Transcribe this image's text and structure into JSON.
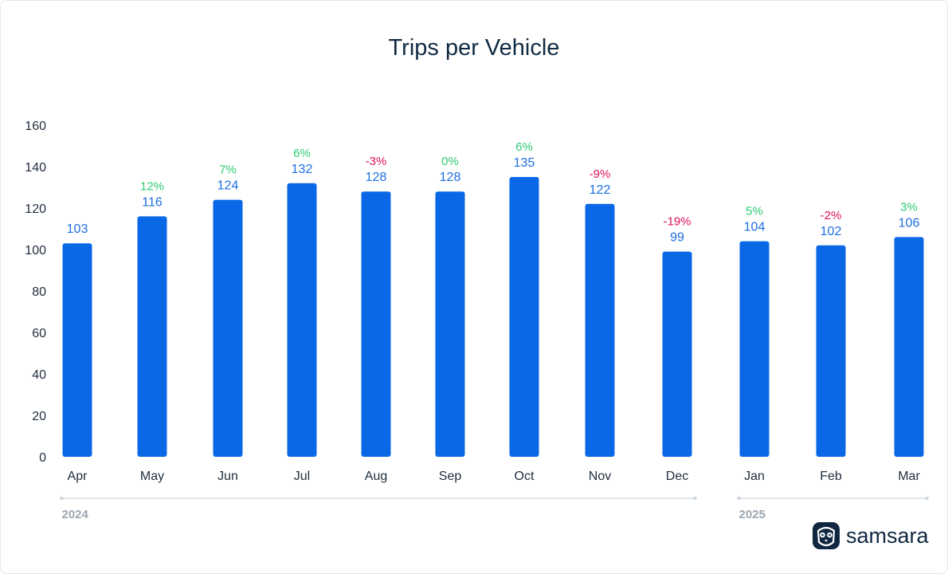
{
  "chart_data": {
    "type": "bar",
    "title": "Trips per Vehicle",
    "categories": [
      "Apr",
      "May",
      "Jun",
      "Jul",
      "Aug",
      "Sep",
      "Oct",
      "Nov",
      "Dec",
      "Jan",
      "Feb",
      "Mar"
    ],
    "values": [
      103,
      116,
      124,
      132,
      128,
      128,
      135,
      122,
      99,
      104,
      102,
      106
    ],
    "changes": [
      "",
      "12%",
      "7%",
      "6%",
      "-3%",
      "0%",
      "6%",
      "-9%",
      "-19%",
      "5%",
      "-2%",
      "3%"
    ],
    "ylim": [
      0,
      160
    ],
    "yticks": [
      0,
      20,
      40,
      60,
      80,
      100,
      120,
      140,
      160
    ],
    "xlabel": "",
    "ylabel": "",
    "grid": false,
    "year_groups": [
      {
        "label": "2024",
        "start": 0,
        "end": 8
      },
      {
        "label": "2025",
        "start": 9,
        "end": 11
      }
    ]
  },
  "colors": {
    "bar": "#0a68e6",
    "value_label": "#1c6fe0",
    "positive_change": "#2ecc71",
    "negative_change": "#e0115f",
    "axis_text": "#1f2d3d",
    "year_text": "#9aa5b1"
  },
  "brand": {
    "name": "samsara",
    "icon": "owl-logo-icon"
  }
}
